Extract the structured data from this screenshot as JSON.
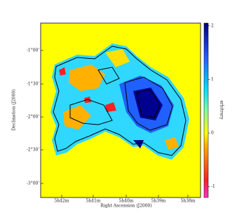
{
  "figure": {
    "x_axis": {
      "label": "Right Ascension (J2000)",
      "ticks": [
        "5h42m",
        "5h41m",
        "5h40m",
        "5h39m",
        "5h38m"
      ]
    },
    "y_axis": {
      "label": "Declination (J2000)",
      "ticks": [
        "-1°00'",
        "-1°30'",
        "-2°00'",
        "-2°30'",
        "-3°00'"
      ]
    },
    "colorbar": {
      "label": "arbitrary",
      "clim": [
        -1.2,
        2.05
      ],
      "ticks": [
        2,
        1,
        0,
        -1
      ]
    }
  }
}
